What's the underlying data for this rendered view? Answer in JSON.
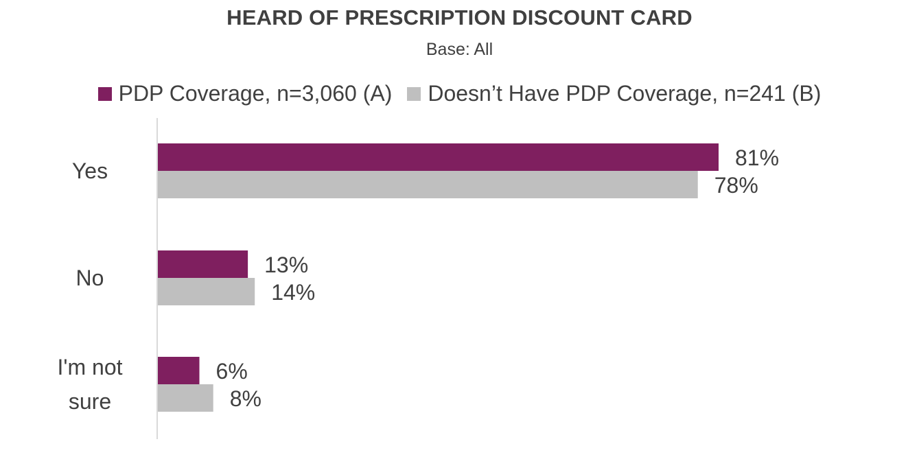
{
  "chart_data": {
    "type": "bar",
    "orientation": "horizontal",
    "title": "HEARD OF PRESCRIPTION DISCOUNT CARD",
    "subtitle": "Base: All",
    "categories": [
      "Yes",
      "No",
      "I'm not sure"
    ],
    "series": [
      {
        "name": "PDP Coverage, n=3,060 (A)",
        "color": "#7F1F5F",
        "values": [
          81,
          13,
          6
        ],
        "labels": [
          "81%",
          "13%",
          "6%"
        ]
      },
      {
        "name": "Doesn’t Have PDP Coverage, n=241 (B)",
        "color": "#BFBFBF",
        "values": [
          78,
          14,
          8
        ],
        "labels": [
          "78%",
          "14%",
          "8%"
        ]
      }
    ],
    "xlim": [
      0,
      100
    ],
    "grid": false,
    "legend_position": "top"
  }
}
